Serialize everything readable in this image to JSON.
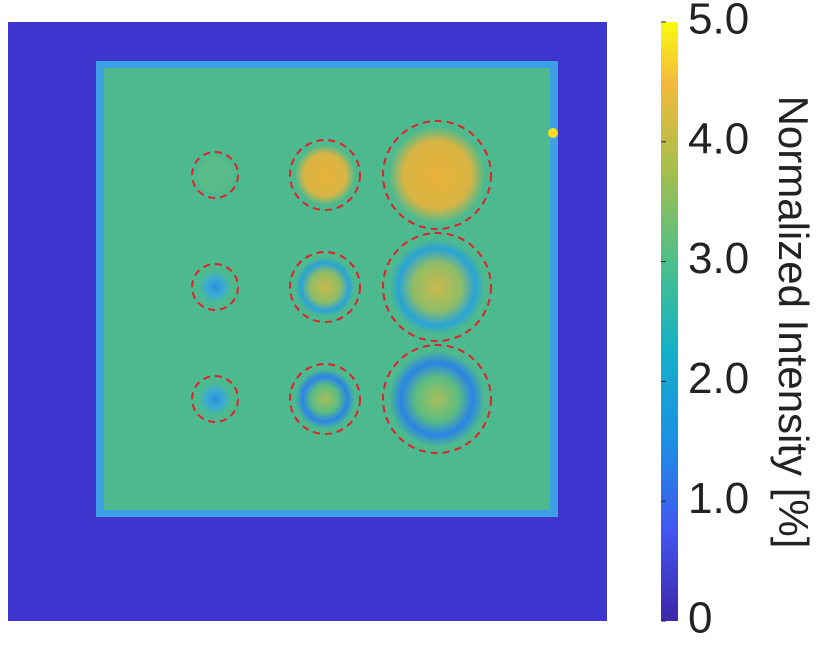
{
  "chart_data": {
    "type": "image",
    "colorbar": {
      "label": "Normalized Intensity [%]",
      "clim": [
        0,
        5
      ],
      "ticks": [
        0,
        {
          "value": 1,
          "label": "1.0"
        },
        {
          "value": 2,
          "label": "2.0"
        },
        {
          "value": 3,
          "label": "3.0"
        },
        {
          "value": 4,
          "label": "4.0"
        },
        {
          "value": 5,
          "label": "5.0"
        }
      ],
      "colormap": "parula"
    }
  }
}
